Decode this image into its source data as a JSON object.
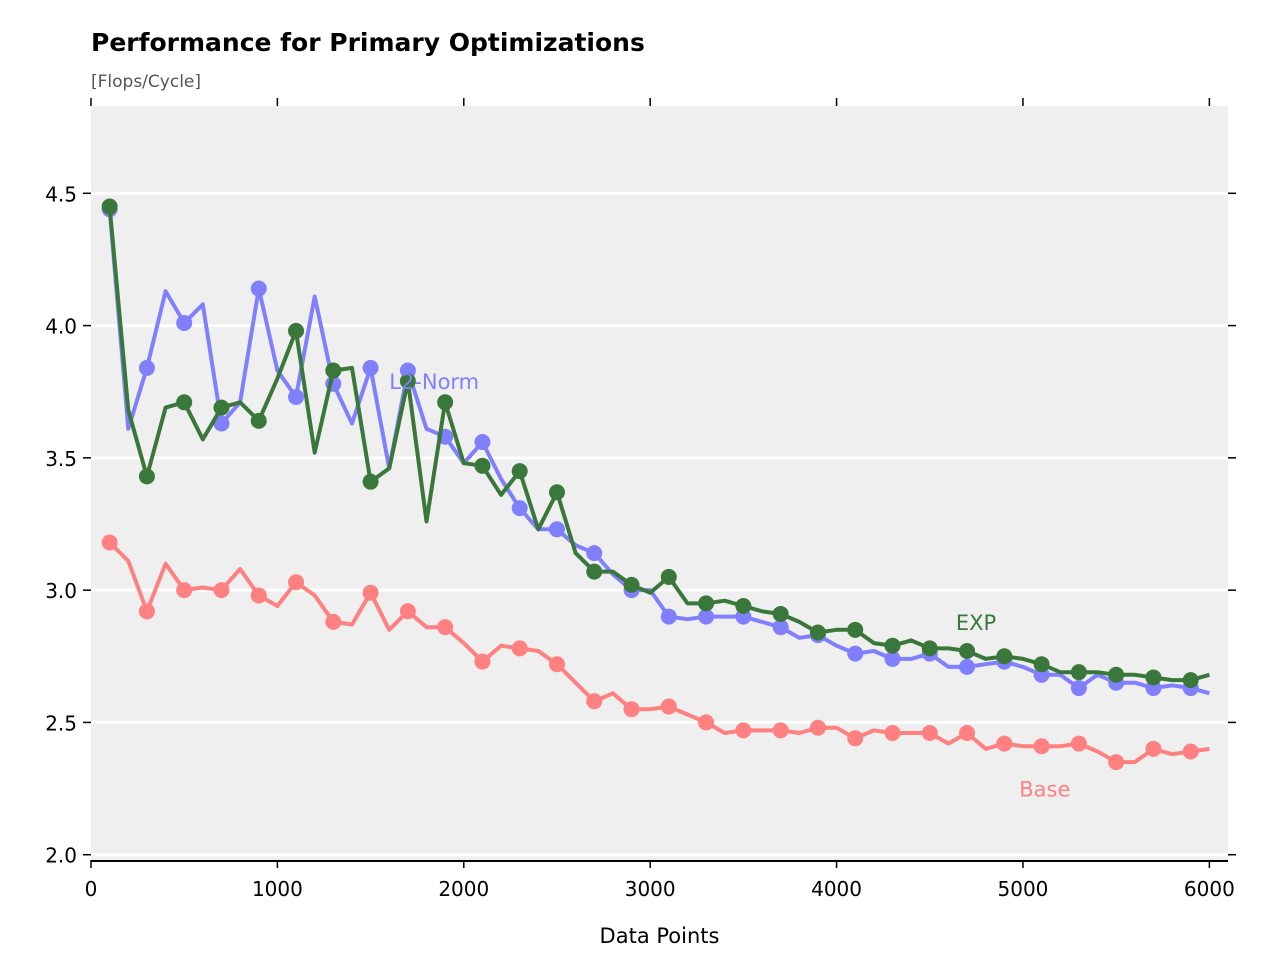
{
  "chart_data": {
    "type": "line",
    "title": "Performance for Primary Optimizations",
    "subtitle": "[Flops/Cycle]",
    "xlabel": "Data Points",
    "ylabel": "",
    "xlim": [
      0,
      6100
    ],
    "ylim": [
      1.98,
      4.83
    ],
    "x_ticks": [
      0,
      1000,
      2000,
      3000,
      4000,
      5000,
      6000
    ],
    "y_ticks": [
      2.0,
      2.5,
      3.0,
      3.5,
      4.0,
      4.5
    ],
    "x_tick_labels": [
      "0",
      "1000",
      "2000",
      "3000",
      "4000",
      "5000",
      "6000"
    ],
    "y_tick_labels": [
      "2.0",
      "2.5",
      "3.0",
      "3.5",
      "4.0",
      "4.5"
    ],
    "grid": "horizontal",
    "legend": "inline labels",
    "background": "#efefef",
    "x": [
      100,
      200,
      300,
      400,
      500,
      600,
      700,
      800,
      900,
      1000,
      1100,
      1200,
      1300,
      1400,
      1500,
      1600,
      1700,
      1800,
      1900,
      2000,
      2100,
      2200,
      2300,
      2400,
      2500,
      2600,
      2700,
      2800,
      2900,
      3000,
      3100,
      3200,
      3300,
      3400,
      3500,
      3600,
      3700,
      3800,
      3900,
      4000,
      4100,
      4200,
      4300,
      4400,
      4500,
      4600,
      4700,
      4800,
      4900,
      5000,
      5100,
      5200,
      5300,
      5400,
      5500,
      5600,
      5700,
      5800,
      5900,
      6000
    ],
    "series": [
      {
        "name": "L2-Norm",
        "color": "#8080ff",
        "label_pos": [
          1600,
          3.79
        ],
        "values": [
          4.44,
          3.61,
          3.84,
          4.13,
          4.01,
          4.08,
          3.63,
          3.71,
          4.14,
          3.83,
          3.73,
          4.11,
          3.78,
          3.63,
          3.84,
          3.46,
          3.83,
          3.61,
          3.58,
          3.48,
          3.56,
          3.42,
          3.31,
          3.23,
          3.23,
          3.17,
          3.14,
          3.06,
          3.0,
          3.0,
          2.9,
          2.89,
          2.9,
          2.9,
          2.9,
          2.88,
          2.86,
          2.82,
          2.83,
          2.79,
          2.76,
          2.77,
          2.74,
          2.74,
          2.76,
          2.71,
          2.71,
          2.72,
          2.73,
          2.71,
          2.68,
          2.68,
          2.63,
          2.68,
          2.65,
          2.65,
          2.63,
          2.64,
          2.63,
          2.61
        ]
      },
      {
        "name": "EXP",
        "color": "#3a773a",
        "label_pos": [
          4640,
          2.88
        ],
        "values": [
          4.45,
          3.68,
          3.43,
          3.69,
          3.71,
          3.57,
          3.69,
          3.71,
          3.64,
          3.8,
          3.98,
          3.52,
          3.83,
          3.84,
          3.41,
          3.46,
          3.79,
          3.26,
          3.71,
          3.48,
          3.47,
          3.36,
          3.45,
          3.23,
          3.37,
          3.14,
          3.07,
          3.07,
          3.02,
          2.99,
          3.05,
          2.95,
          2.95,
          2.96,
          2.94,
          2.92,
          2.91,
          2.88,
          2.84,
          2.85,
          2.85,
          2.8,
          2.79,
          2.81,
          2.78,
          2.78,
          2.77,
          2.74,
          2.75,
          2.74,
          2.72,
          2.69,
          2.69,
          2.69,
          2.68,
          2.68,
          2.67,
          2.66,
          2.66,
          2.68
        ]
      },
      {
        "name": "Base",
        "color": "#ff8080",
        "label_pos": [
          4980,
          2.25
        ],
        "values": [
          3.18,
          3.11,
          2.92,
          3.1,
          3.0,
          3.01,
          3.0,
          3.08,
          2.98,
          2.94,
          3.03,
          2.98,
          2.88,
          2.87,
          2.99,
          2.85,
          2.92,
          2.86,
          2.86,
          2.8,
          2.73,
          2.79,
          2.78,
          2.77,
          2.72,
          2.65,
          2.58,
          2.61,
          2.55,
          2.55,
          2.56,
          2.53,
          2.5,
          2.46,
          2.47,
          2.47,
          2.47,
          2.46,
          2.48,
          2.48,
          2.44,
          2.47,
          2.46,
          2.46,
          2.46,
          2.42,
          2.46,
          2.4,
          2.42,
          2.41,
          2.41,
          2.41,
          2.42,
          2.39,
          2.35,
          2.35,
          2.4,
          2.38,
          2.39,
          2.4
        ]
      }
    ]
  }
}
